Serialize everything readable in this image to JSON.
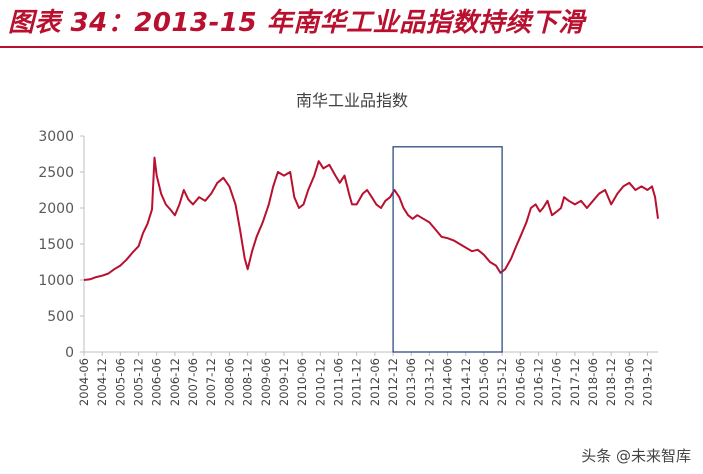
{
  "page": {
    "figure_title": "图表 34：2013-15 年南华工业品指数持续下滑",
    "watermark": "头条 @未来智库",
    "colors": {
      "title": "#b8102e",
      "rule": "#b8102e",
      "series": "#b8102e",
      "highlight_box": "#2f4d7e",
      "axis": "#bfbfbf"
    }
  },
  "chart_data": {
    "type": "line",
    "title": "南华工业品指数",
    "xlabel": "",
    "ylabel": "",
    "ylim": [
      0,
      3000
    ],
    "yticks": [
      0,
      500,
      1000,
      1500,
      2000,
      2500,
      3000
    ],
    "xticks": [
      "2004-06",
      "2004-12",
      "2005-06",
      "2005-12",
      "2006-06",
      "2006-12",
      "2007-06",
      "2007-12",
      "2008-06",
      "2008-12",
      "2009-06",
      "2009-12",
      "2010-06",
      "2010-12",
      "2011-06",
      "2011-12",
      "2012-06",
      "2012-12",
      "2013-06",
      "2013-12",
      "2014-06",
      "2014-12",
      "2015-06",
      "2015-12",
      "2016-06",
      "2016-12",
      "2017-06",
      "2017-12",
      "2018-06",
      "2018-12",
      "2019-06",
      "2019-12"
    ],
    "grid": false,
    "legend": "none",
    "highlight_box": {
      "x_from": "2012-12",
      "x_to": "2015-12",
      "y_from": 0,
      "y_to": 2850
    },
    "series": [
      {
        "name": "",
        "points": [
          [
            "2004-06-01",
            1000
          ],
          [
            "2004-08-01",
            1010
          ],
          [
            "2004-10-01",
            1040
          ],
          [
            "2004-12-01",
            1060
          ],
          [
            "2005-02-01",
            1090
          ],
          [
            "2005-04-01",
            1150
          ],
          [
            "2005-06-01",
            1200
          ],
          [
            "2005-08-01",
            1280
          ],
          [
            "2005-10-01",
            1380
          ],
          [
            "2005-12-01",
            1470
          ],
          [
            "2006-01-15",
            1650
          ],
          [
            "2006-03-01",
            1780
          ],
          [
            "2006-04-15",
            1980
          ],
          [
            "2006-05-10",
            2700
          ],
          [
            "2006-06-01",
            2450
          ],
          [
            "2006-07-15",
            2200
          ],
          [
            "2006-09-01",
            2050
          ],
          [
            "2006-10-15",
            1980
          ],
          [
            "2006-12-01",
            1900
          ],
          [
            "2007-01-15",
            2050
          ],
          [
            "2007-03-01",
            2250
          ],
          [
            "2007-04-15",
            2120
          ],
          [
            "2007-06-01",
            2050
          ],
          [
            "2007-08-01",
            2150
          ],
          [
            "2007-10-01",
            2100
          ],
          [
            "2007-12-01",
            2200
          ],
          [
            "2008-02-01",
            2350
          ],
          [
            "2008-04-01",
            2420
          ],
          [
            "2008-06-01",
            2300
          ],
          [
            "2008-08-01",
            2050
          ],
          [
            "2008-09-15",
            1700
          ],
          [
            "2008-11-01",
            1300
          ],
          [
            "2008-12-01",
            1150
          ],
          [
            "2009-01-15",
            1400
          ],
          [
            "2009-03-01",
            1600
          ],
          [
            "2009-05-01",
            1800
          ],
          [
            "2009-07-01",
            2050
          ],
          [
            "2009-08-15",
            2300
          ],
          [
            "2009-10-01",
            2500
          ],
          [
            "2009-12-01",
            2450
          ],
          [
            "2010-02-01",
            2500
          ],
          [
            "2010-03-15",
            2150
          ],
          [
            "2010-05-01",
            2000
          ],
          [
            "2010-06-15",
            2050
          ],
          [
            "2010-08-01",
            2250
          ],
          [
            "2010-10-01",
            2450
          ],
          [
            "2010-11-15",
            2650
          ],
          [
            "2011-01-01",
            2550
          ],
          [
            "2011-03-01",
            2600
          ],
          [
            "2011-05-01",
            2450
          ],
          [
            "2011-06-15",
            2350
          ],
          [
            "2011-08-01",
            2450
          ],
          [
            "2011-09-15",
            2200
          ],
          [
            "2011-10-15",
            2050
          ],
          [
            "2011-12-01",
            2050
          ],
          [
            "2012-02-01",
            2200
          ],
          [
            "2012-03-15",
            2250
          ],
          [
            "2012-05-01",
            2150
          ],
          [
            "2012-06-15",
            2050
          ],
          [
            "2012-08-01",
            2000
          ],
          [
            "2012-09-15",
            2100
          ],
          [
            "2012-11-01",
            2150
          ],
          [
            "2012-12-15",
            2250
          ],
          [
            "2013-02-01",
            2150
          ],
          [
            "2013-03-15",
            2000
          ],
          [
            "2013-05-01",
            1900
          ],
          [
            "2013-06-15",
            1850
          ],
          [
            "2013-08-01",
            1900
          ],
          [
            "2013-10-01",
            1850
          ],
          [
            "2013-12-01",
            1800
          ],
          [
            "2014-02-01",
            1700
          ],
          [
            "2014-04-01",
            1600
          ],
          [
            "2014-06-01",
            1580
          ],
          [
            "2014-08-01",
            1550
          ],
          [
            "2014-10-01",
            1500
          ],
          [
            "2014-12-01",
            1450
          ],
          [
            "2015-02-01",
            1400
          ],
          [
            "2015-04-01",
            1420
          ],
          [
            "2015-06-01",
            1350
          ],
          [
            "2015-08-01",
            1250
          ],
          [
            "2015-10-01",
            1200
          ],
          [
            "2015-11-15",
            1100
          ],
          [
            "2016-01-01",
            1150
          ],
          [
            "2016-03-01",
            1300
          ],
          [
            "2016-04-15",
            1450
          ],
          [
            "2016-06-01",
            1600
          ],
          [
            "2016-08-01",
            1800
          ],
          [
            "2016-09-15",
            2000
          ],
          [
            "2016-11-01",
            2050
          ],
          [
            "2016-12-15",
            1950
          ],
          [
            "2017-01-15",
            2000
          ],
          [
            "2017-03-01",
            2100
          ],
          [
            "2017-04-15",
            1900
          ],
          [
            "2017-06-01",
            1950
          ],
          [
            "2017-07-15",
            2000
          ],
          [
            "2017-08-15",
            2150
          ],
          [
            "2017-10-01",
            2100
          ],
          [
            "2017-12-01",
            2050
          ],
          [
            "2018-02-01",
            2100
          ],
          [
            "2018-04-01",
            2000
          ],
          [
            "2018-06-01",
            2100
          ],
          [
            "2018-08-01",
            2200
          ],
          [
            "2018-10-01",
            2250
          ],
          [
            "2018-12-01",
            2050
          ],
          [
            "2019-02-01",
            2200
          ],
          [
            "2019-04-01",
            2300
          ],
          [
            "2019-06-01",
            2350
          ],
          [
            "2019-08-01",
            2250
          ],
          [
            "2019-10-01",
            2300
          ],
          [
            "2019-12-01",
            2250
          ],
          [
            "2020-01-15",
            2300
          ],
          [
            "2020-02-15",
            2150
          ],
          [
            "2020-03-15",
            1850
          ]
        ]
      }
    ]
  }
}
